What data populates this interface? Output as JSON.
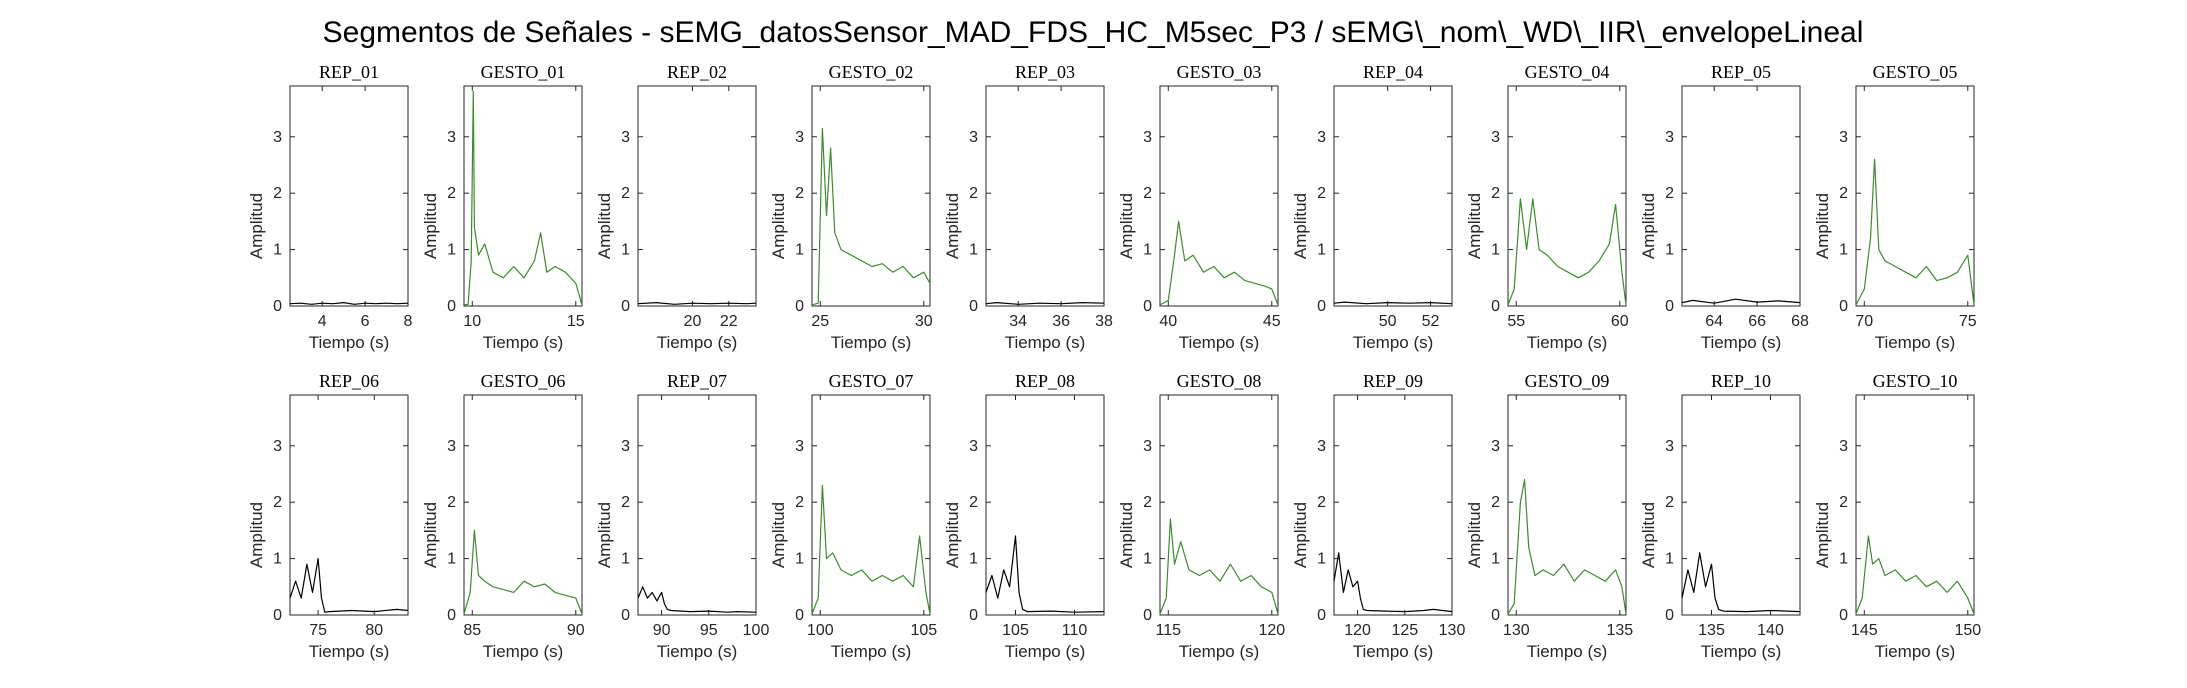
{
  "figure": {
    "title": "Segmentos de Señales - sEMG_datosSensor_MAD_FDS_HC_M5sec_P3 / sEMG\\_nom\\_WD\\_IIR\\_envelopeLineal"
  },
  "colors": {
    "rep": "#000000",
    "gesto": "#3e8b2f",
    "axes": "#262626"
  },
  "chart_data": [
    {
      "type": "line",
      "title": "REP_01",
      "xlabel": "Tiempo (s)",
      "ylabel": "Amplitud",
      "xlim": [
        2.5,
        8
      ],
      "ylim": [
        0,
        3.9
      ],
      "xticks": [
        4,
        6,
        8
      ],
      "yticks": [
        0,
        1,
        2,
        3
      ],
      "kind": "rep",
      "x": [
        2.5,
        3,
        3.5,
        4,
        4.5,
        5,
        5.5,
        6,
        6.5,
        7,
        7.5,
        8
      ],
      "y": [
        0.04,
        0.05,
        0.03,
        0.05,
        0.04,
        0.06,
        0.03,
        0.05,
        0.04,
        0.05,
        0.04,
        0.05
      ]
    },
    {
      "type": "line",
      "title": "GESTO_01",
      "xlabel": "Tiempo (s)",
      "ylabel": "Amplitud",
      "xlim": [
        9.6,
        15.3
      ],
      "ylim": [
        0,
        3.9
      ],
      "xticks": [
        10,
        15
      ],
      "yticks": [
        0,
        1,
        2,
        3
      ],
      "kind": "gesto",
      "x": [
        9.6,
        9.8,
        9.95,
        10.05,
        10.1,
        10.3,
        10.6,
        11,
        11.5,
        12,
        12.5,
        13,
        13.3,
        13.6,
        14,
        14.5,
        15,
        15.3
      ],
      "y": [
        0.02,
        0.03,
        0.8,
        3.8,
        1.4,
        0.9,
        1.1,
        0.6,
        0.5,
        0.7,
        0.5,
        0.8,
        1.3,
        0.6,
        0.7,
        0.6,
        0.4,
        0.02
      ]
    },
    {
      "type": "line",
      "title": "REP_02",
      "xlabel": "Tiempo (s)",
      "ylabel": "Amplitud",
      "xlim": [
        17,
        23.5
      ],
      "ylim": [
        0,
        3.9
      ],
      "xticks": [
        20,
        22
      ],
      "yticks": [
        0,
        1,
        2,
        3
      ],
      "kind": "rep",
      "x": [
        17,
        18,
        19,
        20,
        21,
        22,
        23,
        23.5
      ],
      "y": [
        0.04,
        0.06,
        0.03,
        0.05,
        0.04,
        0.05,
        0.04,
        0.05
      ]
    },
    {
      "type": "line",
      "title": "GESTO_02",
      "xlabel": "Tiempo (s)",
      "ylabel": "Amplitud",
      "xlim": [
        24.6,
        30.3
      ],
      "ylim": [
        0,
        3.9
      ],
      "xticks": [
        25,
        30
      ],
      "yticks": [
        0,
        1,
        2,
        3
      ],
      "kind": "gesto",
      "x": [
        24.6,
        24.9,
        25.1,
        25.3,
        25.5,
        25.7,
        26,
        26.5,
        27,
        27.5,
        28,
        28.5,
        29,
        29.5,
        30,
        30.3
      ],
      "y": [
        0.02,
        0.05,
        3.15,
        1.6,
        2.8,
        1.3,
        1.0,
        0.9,
        0.8,
        0.7,
        0.75,
        0.6,
        0.7,
        0.5,
        0.6,
        0.4
      ]
    },
    {
      "type": "line",
      "title": "REP_03",
      "xlabel": "Tiempo (s)",
      "ylabel": "Amplitud",
      "xlim": [
        32.5,
        38
      ],
      "ylim": [
        0,
        3.9
      ],
      "xticks": [
        34,
        36,
        38
      ],
      "yticks": [
        0,
        1,
        2,
        3
      ],
      "kind": "rep",
      "x": [
        32.5,
        33,
        34,
        35,
        36,
        37,
        38
      ],
      "y": [
        0.04,
        0.06,
        0.03,
        0.05,
        0.04,
        0.06,
        0.05
      ]
    },
    {
      "type": "line",
      "title": "GESTO_03",
      "xlabel": "Tiempo (s)",
      "ylabel": "Amplitud",
      "xlim": [
        39.6,
        45.3
      ],
      "ylim": [
        0,
        3.9
      ],
      "xticks": [
        40,
        45
      ],
      "yticks": [
        0,
        1,
        2,
        3
      ],
      "kind": "gesto",
      "x": [
        39.6,
        40,
        40.3,
        40.5,
        40.8,
        41.2,
        41.7,
        42.2,
        42.7,
        43.2,
        43.7,
        44.2,
        44.7,
        45,
        45.3
      ],
      "y": [
        0.02,
        0.1,
        0.9,
        1.5,
        0.8,
        0.9,
        0.6,
        0.7,
        0.5,
        0.6,
        0.45,
        0.4,
        0.35,
        0.3,
        0.02
      ]
    },
    {
      "type": "line",
      "title": "REP_04",
      "xlabel": "Tiempo (s)",
      "ylabel": "Amplitud",
      "xlim": [
        47.5,
        53
      ],
      "ylim": [
        0,
        3.9
      ],
      "xticks": [
        50,
        52
      ],
      "yticks": [
        0,
        1,
        2,
        3
      ],
      "kind": "rep",
      "x": [
        47.5,
        48,
        49,
        50,
        51,
        52,
        53
      ],
      "y": [
        0.05,
        0.07,
        0.04,
        0.06,
        0.05,
        0.06,
        0.04
      ]
    },
    {
      "type": "line",
      "title": "GESTO_04",
      "xlabel": "Tiempo (s)",
      "ylabel": "Amplitud",
      "xlim": [
        54.6,
        60.3
      ],
      "ylim": [
        0,
        3.9
      ],
      "xticks": [
        55,
        60
      ],
      "yticks": [
        0,
        1,
        2,
        3
      ],
      "kind": "gesto",
      "x": [
        54.6,
        54.9,
        55.2,
        55.5,
        55.8,
        56.1,
        56.5,
        57,
        57.5,
        58,
        58.5,
        59,
        59.5,
        59.8,
        60.1,
        60.3
      ],
      "y": [
        0.02,
        0.3,
        1.9,
        1.0,
        1.9,
        1.0,
        0.9,
        0.7,
        0.6,
        0.5,
        0.6,
        0.8,
        1.1,
        1.8,
        0.6,
        0.02
      ]
    },
    {
      "type": "line",
      "title": "REP_05",
      "xlabel": "Tiempo (s)",
      "ylabel": "Amplitud",
      "xlim": [
        62.5,
        68
      ],
      "ylim": [
        0,
        3.9
      ],
      "xticks": [
        64,
        66,
        68
      ],
      "yticks": [
        0,
        1,
        2,
        3
      ],
      "kind": "rep",
      "x": [
        62.5,
        63,
        64,
        65,
        66,
        67,
        68
      ],
      "y": [
        0.06,
        0.1,
        0.05,
        0.12,
        0.07,
        0.09,
        0.06
      ]
    },
    {
      "type": "line",
      "title": "GESTO_05",
      "xlabel": "Tiempo (s)",
      "ylabel": "Amplitud",
      "xlim": [
        69.6,
        75.3
      ],
      "ylim": [
        0,
        3.9
      ],
      "xticks": [
        70,
        75
      ],
      "yticks": [
        0,
        1,
        2,
        3
      ],
      "kind": "gesto",
      "x": [
        69.6,
        70,
        70.3,
        70.5,
        70.7,
        71,
        71.5,
        72,
        72.5,
        73,
        73.5,
        74,
        74.5,
        75,
        75.3
      ],
      "y": [
        0.02,
        0.3,
        1.2,
        2.6,
        1.0,
        0.8,
        0.7,
        0.6,
        0.5,
        0.7,
        0.45,
        0.5,
        0.6,
        0.9,
        0.02
      ]
    },
    {
      "type": "line",
      "title": "REP_06",
      "xlabel": "Tiempo (s)",
      "ylabel": "Amplitud",
      "xlim": [
        72.5,
        83
      ],
      "ylim": [
        0,
        3.9
      ],
      "xticks": [
        75,
        80
      ],
      "yticks": [
        0,
        1,
        2,
        3
      ],
      "kind": "rep",
      "x": [
        72.5,
        73,
        73.5,
        74,
        74.5,
        75,
        75.3,
        75.6,
        76,
        78,
        80,
        82,
        83
      ],
      "y": [
        0.3,
        0.6,
        0.3,
        0.9,
        0.4,
        1.0,
        0.3,
        0.05,
        0.06,
        0.08,
        0.06,
        0.1,
        0.08
      ]
    },
    {
      "type": "line",
      "title": "GESTO_06",
      "xlabel": "Tiempo (s)",
      "ylabel": "Amplitud",
      "xlim": [
        84.6,
        90.3
      ],
      "ylim": [
        0,
        3.9
      ],
      "xticks": [
        85,
        90
      ],
      "yticks": [
        0,
        1,
        2,
        3
      ],
      "kind": "gesto",
      "x": [
        84.6,
        84.9,
        85.1,
        85.3,
        85.6,
        86,
        86.5,
        87,
        87.5,
        88,
        88.5,
        89,
        89.5,
        90,
        90.3
      ],
      "y": [
        0.02,
        0.4,
        1.5,
        0.7,
        0.6,
        0.5,
        0.45,
        0.4,
        0.6,
        0.5,
        0.55,
        0.4,
        0.35,
        0.3,
        0.02
      ]
    },
    {
      "type": "line",
      "title": "REP_07",
      "xlabel": "Tiempo (s)",
      "ylabel": "Amplitud",
      "xlim": [
        87.5,
        100
      ],
      "ylim": [
        0,
        3.9
      ],
      "xticks": [
        90,
        95,
        100
      ],
      "yticks": [
        0,
        1,
        2,
        3
      ],
      "kind": "rep",
      "x": [
        87.5,
        88,
        88.5,
        89,
        89.5,
        90,
        90.3,
        90.6,
        91,
        93,
        95,
        97,
        98,
        100
      ],
      "y": [
        0.3,
        0.5,
        0.3,
        0.4,
        0.25,
        0.4,
        0.2,
        0.1,
        0.08,
        0.06,
        0.07,
        0.05,
        0.06,
        0.05
      ]
    },
    {
      "type": "line",
      "title": "GESTO_07",
      "xlabel": "Tiempo (s)",
      "ylabel": "Amplitud",
      "xlim": [
        99.6,
        105.3
      ],
      "ylim": [
        0,
        3.9
      ],
      "xticks": [
        100,
        105
      ],
      "yticks": [
        0,
        1,
        2,
        3
      ],
      "kind": "gesto",
      "x": [
        99.6,
        99.9,
        100.1,
        100.3,
        100.6,
        101,
        101.5,
        102,
        102.5,
        103,
        103.5,
        104,
        104.5,
        104.8,
        105.1,
        105.3
      ],
      "y": [
        0.02,
        0.3,
        2.3,
        1.0,
        1.1,
        0.8,
        0.7,
        0.8,
        0.6,
        0.7,
        0.6,
        0.7,
        0.5,
        1.4,
        0.4,
        0.02
      ]
    },
    {
      "type": "line",
      "title": "REP_08",
      "xlabel": "Tiempo (s)",
      "ylabel": "Amplitud",
      "xlim": [
        102.5,
        112.5
      ],
      "ylim": [
        0,
        3.9
      ],
      "xticks": [
        105,
        110
      ],
      "yticks": [
        0,
        1,
        2,
        3
      ],
      "kind": "rep",
      "x": [
        102.5,
        103,
        103.5,
        104,
        104.5,
        105,
        105.3,
        105.6,
        106,
        108,
        110,
        112.5
      ],
      "y": [
        0.4,
        0.7,
        0.3,
        0.8,
        0.5,
        1.4,
        0.4,
        0.1,
        0.06,
        0.07,
        0.05,
        0.06
      ]
    },
    {
      "type": "line",
      "title": "GESTO_08",
      "xlabel": "Tiempo (s)",
      "ylabel": "Amplitud",
      "xlim": [
        114.6,
        120.3
      ],
      "ylim": [
        0,
        3.9
      ],
      "xticks": [
        115,
        120
      ],
      "yticks": [
        0,
        1,
        2,
        3
      ],
      "kind": "gesto",
      "x": [
        114.6,
        114.9,
        115.1,
        115.3,
        115.6,
        116,
        116.5,
        117,
        117.5,
        118,
        118.5,
        119,
        119.5,
        120,
        120.3
      ],
      "y": [
        0.02,
        0.3,
        1.7,
        0.9,
        1.3,
        0.8,
        0.7,
        0.8,
        0.6,
        0.9,
        0.6,
        0.7,
        0.5,
        0.4,
        0.02
      ]
    },
    {
      "type": "line",
      "title": "REP_09",
      "xlabel": "Tiempo (s)",
      "ylabel": "Amplitud",
      "xlim": [
        117.5,
        130
      ],
      "ylim": [
        0,
        3.9
      ],
      "xticks": [
        120,
        125,
        130
      ],
      "yticks": [
        0,
        1,
        2,
        3
      ],
      "kind": "rep",
      "x": [
        117.5,
        118,
        118.5,
        119,
        119.5,
        120,
        120.3,
        120.6,
        121,
        123,
        125,
        127,
        128,
        130
      ],
      "y": [
        0.6,
        1.1,
        0.4,
        0.8,
        0.5,
        0.6,
        0.3,
        0.1,
        0.08,
        0.07,
        0.06,
        0.08,
        0.1,
        0.06
      ]
    },
    {
      "type": "line",
      "title": "GESTO_09",
      "xlabel": "Tiempo (s)",
      "ylabel": "Amplitud",
      "xlim": [
        129.6,
        135.3
      ],
      "ylim": [
        0,
        3.9
      ],
      "xticks": [
        130,
        135
      ],
      "yticks": [
        0,
        1,
        2,
        3
      ],
      "kind": "gesto",
      "x": [
        129.6,
        129.9,
        130.2,
        130.4,
        130.6,
        130.9,
        131.3,
        131.8,
        132.3,
        132.8,
        133.3,
        133.8,
        134.3,
        134.8,
        135.1,
        135.3
      ],
      "y": [
        0.02,
        0.2,
        2.0,
        2.4,
        1.2,
        0.7,
        0.8,
        0.7,
        0.9,
        0.6,
        0.8,
        0.7,
        0.6,
        0.8,
        0.5,
        0.02
      ]
    },
    {
      "type": "line",
      "title": "REP_10",
      "xlabel": "Tiempo (s)",
      "ylabel": "Amplitud",
      "xlim": [
        132.5,
        142.5
      ],
      "ylim": [
        0,
        3.9
      ],
      "xticks": [
        135,
        140
      ],
      "yticks": [
        0,
        1,
        2,
        3
      ],
      "kind": "rep",
      "x": [
        132.5,
        133,
        133.5,
        134,
        134.5,
        135,
        135.3,
        135.6,
        136,
        138,
        140,
        142.5
      ],
      "y": [
        0.3,
        0.8,
        0.4,
        1.1,
        0.5,
        0.9,
        0.3,
        0.1,
        0.07,
        0.06,
        0.08,
        0.06
      ]
    },
    {
      "type": "line",
      "title": "GESTO_10",
      "xlabel": "Tiempo (s)",
      "ylabel": "Amplitud",
      "xlim": [
        144.6,
        150.3
      ],
      "ylim": [
        0,
        3.9
      ],
      "xticks": [
        145,
        150
      ],
      "yticks": [
        0,
        1,
        2,
        3
      ],
      "kind": "gesto",
      "x": [
        144.6,
        144.9,
        145.2,
        145.4,
        145.7,
        146,
        146.5,
        147,
        147.5,
        148,
        148.5,
        149,
        149.5,
        150,
        150.3
      ],
      "y": [
        0.02,
        0.3,
        1.4,
        0.9,
        1.0,
        0.7,
        0.8,
        0.6,
        0.7,
        0.5,
        0.6,
        0.4,
        0.6,
        0.3,
        0.02
      ]
    }
  ]
}
